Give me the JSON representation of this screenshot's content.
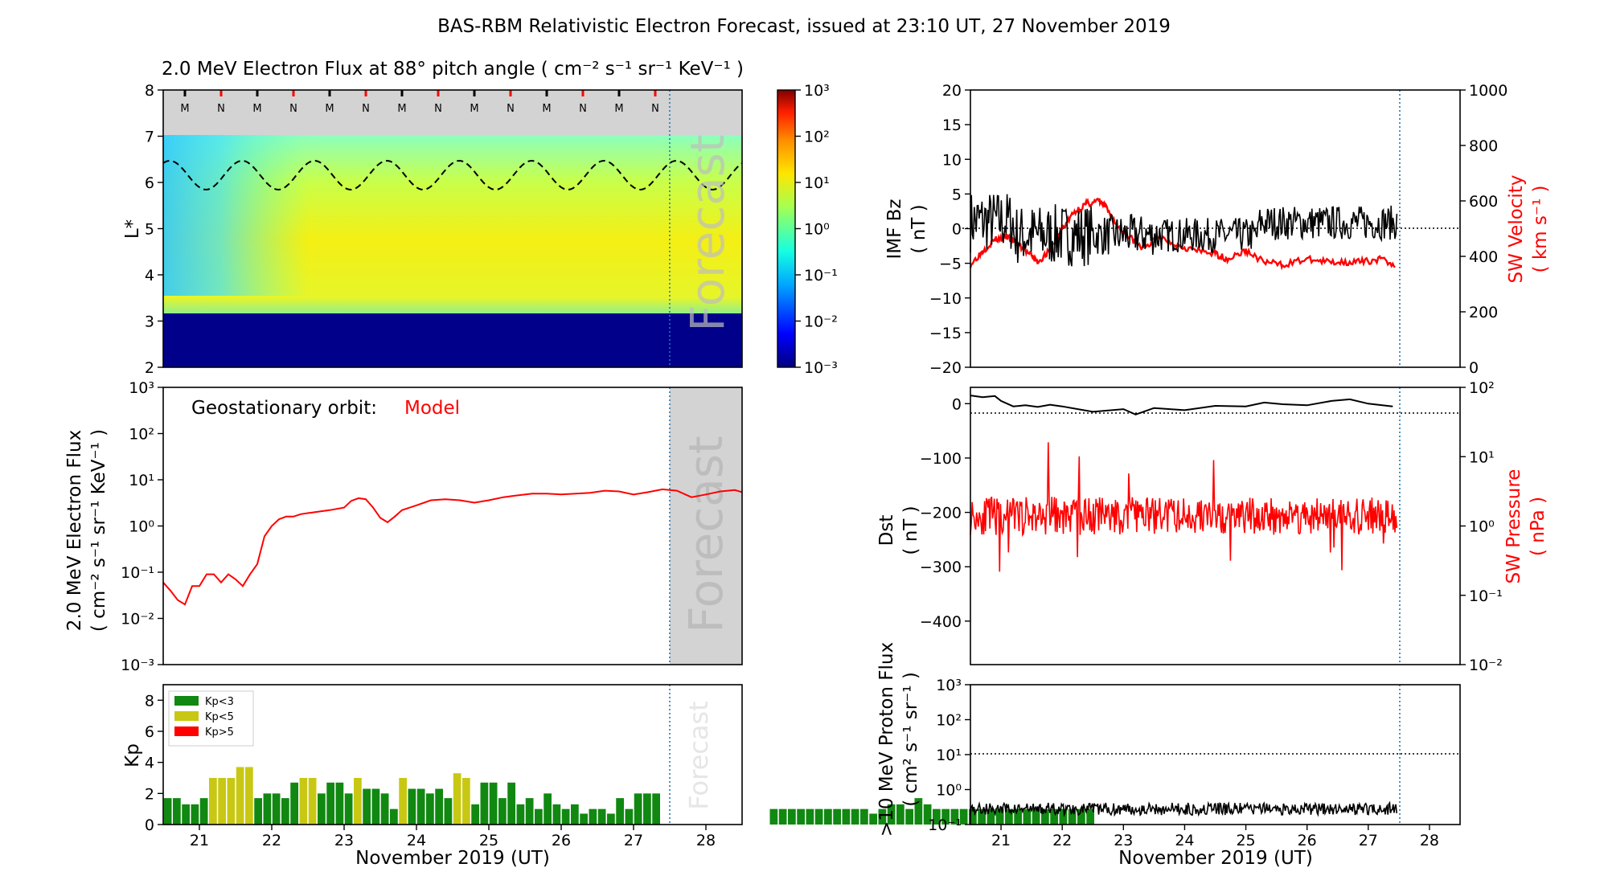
{
  "title": "BAS-RBM Relativistic Electron Forecast, issued at 23:10 UT, 27 November 2019",
  "colors": {
    "model": "#ff0000",
    "obs": "#000000",
    "forecast_shade": "#d3d3d3",
    "kp_green": "#118811",
    "kp_yellow": "#c8c814",
    "kp_red": "#ff0000",
    "forecast_line": "#1f77b4"
  },
  "days": [
    "21",
    "22",
    "23",
    "24",
    "25",
    "26",
    "27",
    "28"
  ],
  "xrange_days": [
    20.5,
    28.5
  ],
  "forecast_start_day": 27.49,
  "xlabel": "November 2019 (UT)",
  "panels": {
    "lstar": {
      "title": "2.0 MeV Electron Flux at 88° pitch angle ( cm⁻² s⁻¹ sr⁻¹ KeV⁻¹ )",
      "ylabel": "L*",
      "yticks": [
        "2",
        "3",
        "4",
        "5",
        "6",
        "7",
        "8"
      ],
      "ylim": [
        2,
        8
      ],
      "mn_labels": [
        "M",
        "N",
        "M",
        "N",
        "M",
        "N",
        "M",
        "N",
        "M",
        "N",
        "M",
        "N",
        "M",
        "N"
      ],
      "colorbar_ticks": [
        "10³",
        "10²",
        "10¹",
        "10⁰",
        "10⁻¹",
        "10⁻²",
        "10⁻³"
      ],
      "forecast_label": "Forecast"
    },
    "geo": {
      "ylabel_line1": "2.0 MeV Electron Flux",
      "ylabel_line2": "( cm⁻² s⁻¹ sr⁻¹ KeV⁻¹ )",
      "yticks": [
        "10³",
        "10²",
        "10¹",
        "10⁰",
        "10⁻¹",
        "10⁻²",
        "10⁻³"
      ],
      "annotation": "Geostationary orbit:",
      "annotation_model": "Model",
      "forecast_label": "Forecast"
    },
    "kp": {
      "ylabel": "Kp",
      "yticks": [
        "0",
        "2",
        "4",
        "6",
        "8"
      ],
      "legend": [
        "Kp<3",
        "Kp<5",
        "Kp>5"
      ],
      "forecast_label": "Forecast"
    },
    "imf": {
      "ylabel_line1": "IMF Bz",
      "ylabel_line2": "( nT )",
      "yticks": [
        "20",
        "15",
        "10",
        "5",
        "0",
        "−5",
        "−10",
        "−15",
        "−20"
      ],
      "ylabel_right_line1": "SW Velocity",
      "ylabel_right_line2": "( km s⁻¹ )",
      "yticks_right": [
        "1000",
        "800",
        "600",
        "400",
        "200",
        "0"
      ]
    },
    "dst": {
      "ylabel_line1": "Dst",
      "ylabel_line2": "( nT )",
      "yticks": [
        "0",
        "−100",
        "−200",
        "−300",
        "−400"
      ],
      "ylabel_right_line1": "SW Pressure",
      "ylabel_right_line2": "( nPa )",
      "yticks_right": [
        "10²",
        "10¹",
        "10⁰",
        "10⁻¹",
        "10⁻²"
      ]
    },
    "proton": {
      "ylabel_line1": ">10 MeV Proton Flux",
      "ylabel_line2": "( cm² s⁻¹ sr⁻¹ )",
      "yticks": [
        "10³",
        "10²",
        "10¹",
        "10⁰",
        "10⁻¹"
      ]
    }
  },
  "chart_data": [
    {
      "type": "line",
      "name": "geo_model_flux",
      "scale": "log",
      "ylim": [
        0.001,
        1000
      ],
      "x": [
        20.5,
        20.6,
        20.7,
        20.8,
        20.9,
        21.0,
        21.1,
        21.2,
        21.3,
        21.4,
        21.5,
        21.6,
        21.7,
        21.8,
        21.9,
        22.0,
        22.1,
        22.2,
        22.3,
        22.4,
        22.6,
        22.8,
        23.0,
        23.1,
        23.2,
        23.3,
        23.4,
        23.5,
        23.6,
        23.7,
        23.8,
        24.0,
        24.2,
        24.4,
        24.6,
        24.8,
        25.0,
        25.2,
        25.4,
        25.6,
        25.8,
        26.0,
        26.2,
        26.4,
        26.6,
        26.8,
        27.0,
        27.2,
        27.4,
        27.6,
        27.8,
        28.0,
        28.2,
        28.4,
        28.5
      ],
      "y": [
        0.06,
        0.04,
        0.025,
        0.02,
        0.05,
        0.05,
        0.09,
        0.09,
        0.06,
        0.09,
        0.07,
        0.05,
        0.09,
        0.15,
        0.6,
        1.0,
        1.4,
        1.6,
        1.6,
        1.8,
        2.0,
        2.2,
        2.5,
        3.5,
        4.0,
        3.8,
        2.5,
        1.5,
        1.2,
        1.6,
        2.2,
        2.8,
        3.6,
        3.8,
        3.6,
        3.2,
        3.6,
        4.2,
        4.6,
        5.0,
        5.0,
        4.8,
        5.0,
        5.2,
        5.8,
        5.6,
        4.8,
        5.4,
        6.2,
        5.8,
        4.2,
        4.8,
        5.6,
        6.0,
        5.4
      ]
    },
    {
      "type": "bar",
      "name": "kp",
      "x_start": 20.5,
      "bin_days": 0.125,
      "values": [
        1.7,
        1.7,
        1.3,
        1.3,
        1.7,
        3.0,
        3.0,
        3.0,
        3.7,
        3.7,
        1.7,
        2.0,
        2.0,
        1.7,
        2.7,
        3.0,
        3.0,
        2.0,
        2.7,
        2.7,
        2.0,
        3.0,
        2.3,
        2.3,
        2.0,
        1.0,
        3.0,
        2.3,
        2.3,
        2.0,
        2.3,
        1.7,
        3.3,
        3.0,
        1.3,
        2.7,
        2.7,
        1.7,
        2.7,
        1.3,
        1.7,
        1.0,
        2.0,
        1.3,
        1.0,
        1.3,
        0.7,
        1.0,
        1.0,
        0.7,
        1.7,
        1.0,
        2.0,
        2.0,
        2.0,
        0,
        0,
        0,
        0,
        0,
        0,
        0,
        0,
        0,
        0,
        0,
        0,
        1.0,
        1.0,
        1.0,
        1.0,
        1.0,
        1.0,
        1.0,
        1.0,
        1.0,
        1.0,
        1.0,
        0.7,
        1.0,
        1.3,
        1.3,
        1.0,
        1.7,
        1.3,
        1.0,
        1.0,
        1.0,
        1.0,
        1.0,
        1.0,
        1.0,
        1.0,
        1.0,
        1.0,
        1.0,
        1.0,
        1.0,
        1.0,
        1.0,
        1.0,
        1.0,
        1.0
      ]
    },
    {
      "type": "line",
      "name": "dst",
      "ylim": [
        -480,
        30
      ],
      "x": [
        20.5,
        20.7,
        20.9,
        21.0,
        21.2,
        21.4,
        21.6,
        21.8,
        22.0,
        22.5,
        23.0,
        23.2,
        23.5,
        24.0,
        24.5,
        25.0,
        25.3,
        25.6,
        26.0,
        26.4,
        26.7,
        27.0,
        27.4
      ],
      "y": [
        15,
        12,
        14,
        5,
        -5,
        -3,
        -6,
        -2,
        -5,
        -15,
        -10,
        -20,
        -8,
        -12,
        -4,
        -5,
        2,
        -1,
        -3,
        5,
        8,
        0,
        -5
      ]
    },
    {
      "type": "line",
      "name": "sw_velocity",
      "ylim": [
        0,
        1000
      ],
      "x": [
        20.5,
        20.7,
        20.9,
        21.1,
        21.3,
        21.5,
        21.6,
        21.8,
        22.0,
        22.2,
        22.4,
        22.6,
        22.7,
        22.9,
        23.1,
        23.3,
        23.6,
        23.9,
        24.2,
        24.5,
        24.7,
        25.0,
        25.3,
        25.6,
        26.0,
        26.3,
        26.6,
        26.9,
        27.2,
        27.45
      ],
      "y": [
        370,
        420,
        460,
        470,
        440,
        400,
        380,
        420,
        500,
        560,
        590,
        600,
        580,
        510,
        470,
        430,
        470,
        440,
        420,
        410,
        390,
        420,
        380,
        370,
        390,
        380,
        380,
        380,
        390,
        370
      ]
    }
  ]
}
